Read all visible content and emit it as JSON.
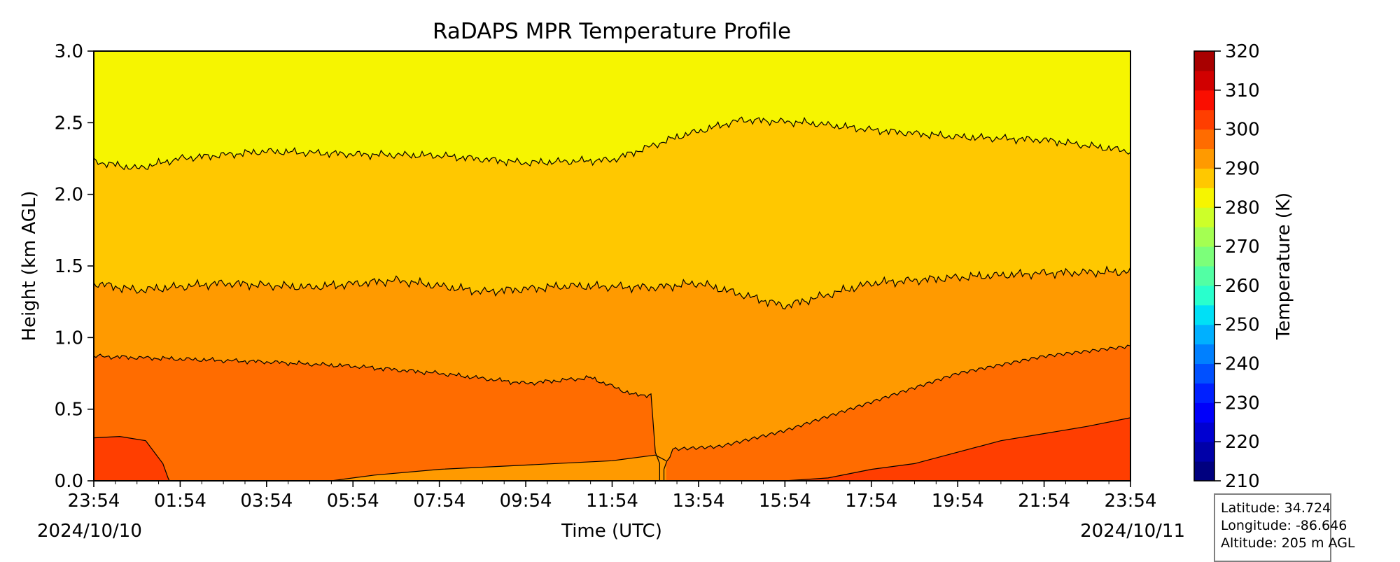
{
  "chart_data": {
    "type": "heatmap",
    "title": "RaDAPS MPR Temperature Profile",
    "xlabel": "Time (UTC)",
    "ylabel": "Height (km AGL)",
    "x_tick_labels": [
      "23:54",
      "01:54",
      "03:54",
      "05:54",
      "07:54",
      "09:54",
      "11:54",
      "13:54",
      "15:54",
      "17:54",
      "19:54",
      "21:54",
      "23:54"
    ],
    "x_ticks_hours": [
      0,
      2,
      4,
      6,
      8,
      10,
      12,
      14,
      16,
      18,
      20,
      22,
      24
    ],
    "x_minor_every_hours": 0.5,
    "xlim_hours": [
      0,
      24
    ],
    "start_date_label": "2024/10/10",
    "end_date_label": "2024/10/11",
    "ylim": [
      0,
      3
    ],
    "y_ticks": [
      0,
      0.5,
      1,
      1.5,
      2,
      2.5,
      3
    ],
    "y_tick_labels": [
      "0.0",
      "0.5",
      "1.0",
      "1.5",
      "2.0",
      "2.5",
      "3.0"
    ],
    "colorbar": {
      "label": "Temperature (K)",
      "range": [
        210,
        320
      ],
      "levels_step": 5,
      "ticks": [
        210,
        220,
        230,
        240,
        250,
        260,
        270,
        280,
        290,
        300,
        310,
        320
      ],
      "tick_labels": [
        "210",
        "220",
        "230",
        "240",
        "250",
        "260",
        "270",
        "280",
        "290",
        "300",
        "310",
        "320"
      ],
      "level_colors": [
        "#00007f",
        "#0000a8",
        "#0000d1",
        "#0000fa",
        "#0020ff",
        "#0050ff",
        "#0080ff",
        "#00b0ff",
        "#00e0f6",
        "#29ffcd",
        "#52ffa4",
        "#7cff7a",
        "#a4ff52",
        "#cdff29",
        "#f6f500",
        "#ffc800",
        "#ff9a00",
        "#ff6c00",
        "#ff3e00",
        "#fa0e00",
        "#d10000",
        "#a80000"
      ]
    },
    "contours": [
      {
        "level_K": 285,
        "profile_km": [
          [
            0,
            2.23
          ],
          [
            1,
            2.18
          ],
          [
            2,
            2.25
          ],
          [
            4,
            2.3
          ],
          [
            6,
            2.28
          ],
          [
            8,
            2.27
          ],
          [
            10,
            2.22
          ],
          [
            12,
            2.24
          ],
          [
            13.5,
            2.4
          ],
          [
            15,
            2.52
          ],
          [
            16.5,
            2.5
          ],
          [
            18,
            2.45
          ],
          [
            20,
            2.4
          ],
          [
            22,
            2.38
          ],
          [
            24,
            2.3
          ]
        ]
      },
      {
        "level_K": 290,
        "profile_km": [
          [
            0,
            1.38
          ],
          [
            1,
            1.33
          ],
          [
            3,
            1.38
          ],
          [
            5,
            1.35
          ],
          [
            7,
            1.4
          ],
          [
            9,
            1.32
          ],
          [
            11,
            1.36
          ],
          [
            13,
            1.35
          ],
          [
            14,
            1.38
          ],
          [
            15,
            1.3
          ],
          [
            16,
            1.22
          ],
          [
            17,
            1.3
          ],
          [
            18,
            1.38
          ],
          [
            20,
            1.42
          ],
          [
            22,
            1.45
          ],
          [
            24,
            1.46
          ]
        ]
      },
      {
        "level_K": 295,
        "profile_km": [
          [
            0,
            0.87
          ],
          [
            2,
            0.85
          ],
          [
            4,
            0.83
          ],
          [
            6,
            0.8
          ],
          [
            8,
            0.75
          ],
          [
            10,
            0.68
          ],
          [
            11.5,
            0.72
          ],
          [
            12.5,
            0.6
          ],
          [
            13,
            0.35
          ],
          [
            13.2,
            0.08
          ],
          [
            13.4,
            0.22
          ],
          [
            14.5,
            0.24
          ],
          [
            16,
            0.35
          ],
          [
            18,
            0.55
          ],
          [
            20,
            0.75
          ],
          [
            22,
            0.87
          ],
          [
            24,
            0.94
          ]
        ]
      }
    ],
    "regions": [
      {
        "label_K": 300,
        "description": "warm near-surface pocket at start",
        "polygon_hours_km": [
          [
            0,
            0.3
          ],
          [
            0.6,
            0.31
          ],
          [
            1.2,
            0.28
          ],
          [
            1.6,
            0.12
          ],
          [
            1.72,
            0.02
          ],
          [
            1.75,
            0
          ],
          [
            0,
            0
          ]
        ]
      },
      {
        "label_K": 300,
        "description": "warm near-surface pocket at end",
        "boundary_hours_km": [
          [
            16,
            0
          ],
          [
            17,
            0.02
          ],
          [
            18,
            0.08
          ],
          [
            19,
            0.12
          ],
          [
            20,
            0.2
          ],
          [
            21,
            0.28
          ],
          [
            22,
            0.33
          ],
          [
            23,
            0.38
          ],
          [
            24,
            0.44
          ]
        ]
      },
      {
        "label_K": 290,
        "description": "cooler near-surface layer midday",
        "boundary_hours_km": [
          [
            5.5,
            0
          ],
          [
            6.5,
            0.04
          ],
          [
            8,
            0.08
          ],
          [
            10,
            0.11
          ],
          [
            12,
            0.14
          ],
          [
            13,
            0.18
          ],
          [
            13.25,
            0.14
          ]
        ]
      }
    ],
    "legend": "none",
    "grid": false
  },
  "info": {
    "latitude": "Latitude: 34.724",
    "longitude": "Longitude: -86.646",
    "altitude": "Altitude: 205 m AGL"
  }
}
